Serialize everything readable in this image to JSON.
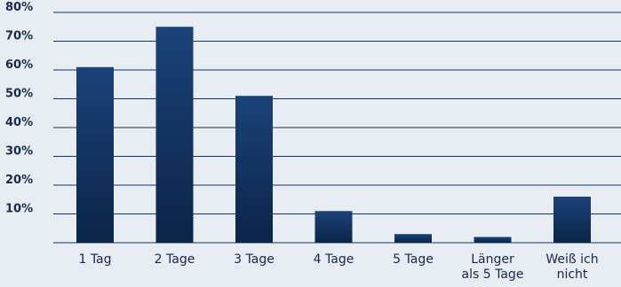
{
  "chart_data": {
    "type": "bar",
    "title": "",
    "xlabel": "",
    "ylabel": "",
    "categories": [
      [
        "1 Tag"
      ],
      [
        "2 Tage"
      ],
      [
        "3 Tage"
      ],
      [
        "4 Tage"
      ],
      [
        "5 Tage"
      ],
      [
        "Länger",
        "als 5 Tage"
      ],
      [
        "Weiß ich",
        "nicht"
      ]
    ],
    "values": [
      61,
      75,
      51,
      11,
      3,
      2,
      16
    ],
    "ylim": [
      0,
      80
    ],
    "yticks": [
      10,
      20,
      30,
      40,
      50,
      60,
      70,
      80
    ],
    "ytick_labels": [
      "10%",
      "20%",
      "30%",
      "40%",
      "50%",
      "60%",
      "70%",
      "80%"
    ],
    "grid": true,
    "legend": "none",
    "colors": {
      "background": "#e8edf3",
      "bar_top": "#1b4279",
      "bar_bottom": "#0b2448",
      "grid": "#16325c",
      "axis_text": "#1a2a4a"
    }
  }
}
